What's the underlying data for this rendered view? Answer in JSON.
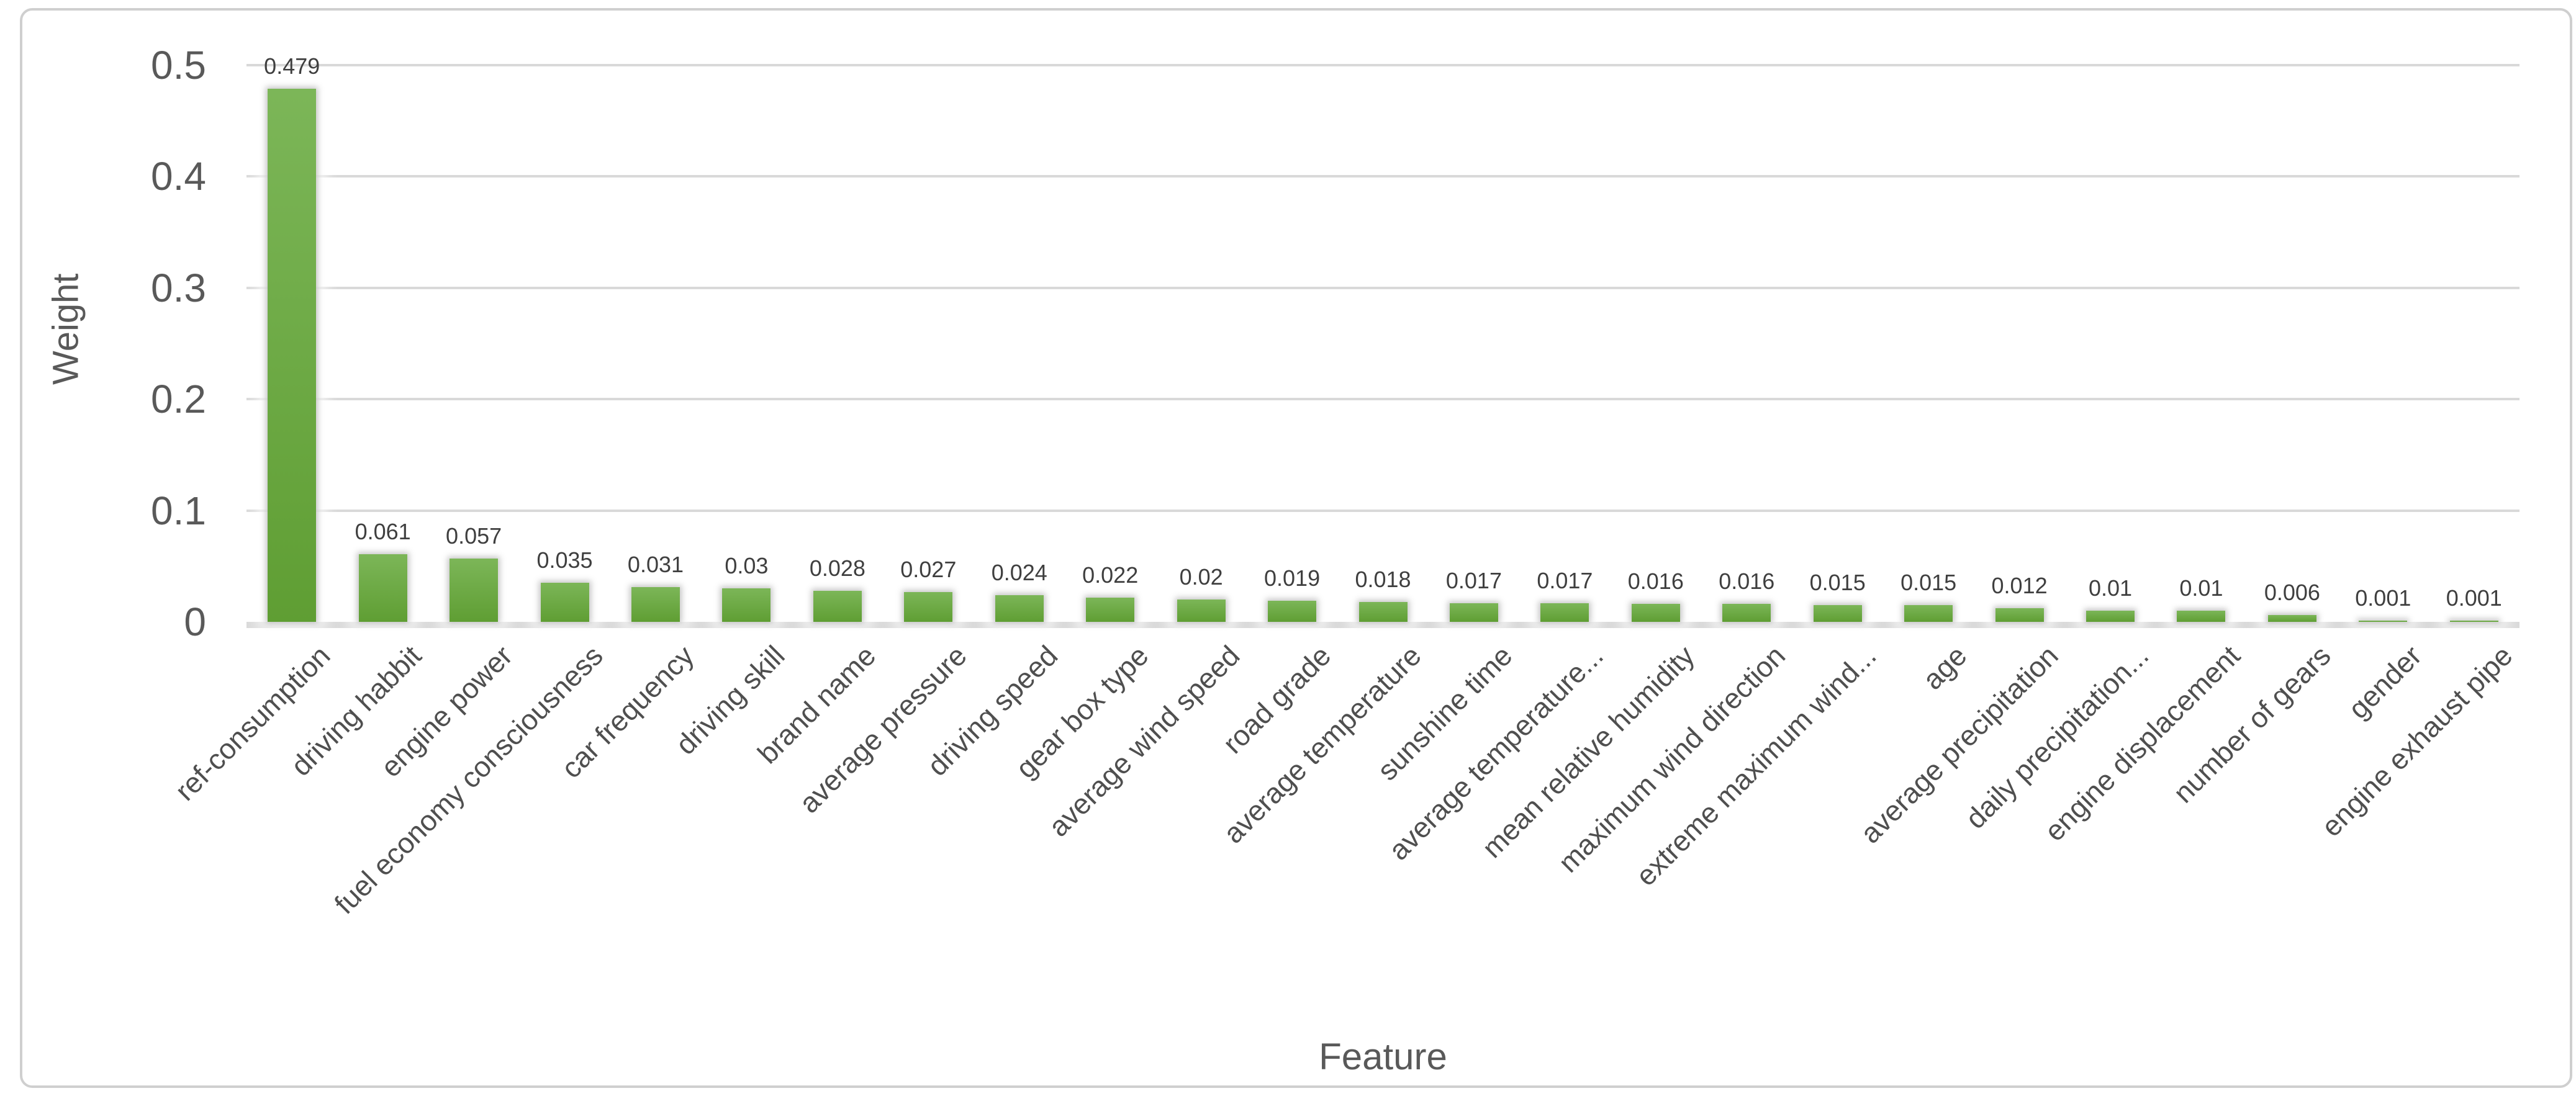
{
  "chart_data": {
    "type": "bar",
    "title": "",
    "xlabel": "Feature",
    "ylabel": "Weight",
    "ylim": [
      0,
      0.5
    ],
    "yticks": [
      0,
      0.1,
      0.2,
      0.3,
      0.4,
      0.5
    ],
    "ytick_labels": [
      "0",
      "0.1",
      "0.2",
      "0.3",
      "0.4",
      "0.5"
    ],
    "grid": "horizontal",
    "legend": "none",
    "bar_color": "green",
    "categories": [
      "ref-consumption",
      "driving habbit",
      "engine power",
      "fuel economy consciousness",
      "car frequency",
      "driving skill",
      "brand name",
      "average pressure",
      "driving speed",
      "gear box type",
      "average wind speed",
      "road grade",
      "average temperature",
      "sunshine time",
      "average temperature...",
      "mean relative humidity",
      "maximum wind direction",
      "extreme maximum wind...",
      "age",
      "average precipitation",
      "daily precipitation...",
      "engine displacement",
      "number of gears",
      "gender",
      "engine exhaust pipe"
    ],
    "values": [
      0.479,
      0.061,
      0.057,
      0.035,
      0.031,
      0.03,
      0.028,
      0.027,
      0.024,
      0.022,
      0.02,
      0.019,
      0.018,
      0.017,
      0.017,
      0.016,
      0.016,
      0.015,
      0.015,
      0.012,
      0.01,
      0.01,
      0.006,
      0.001,
      0.001
    ],
    "value_labels": [
      "0.479",
      "0.061",
      "0.057",
      "0.035",
      "0.031",
      "0.03",
      "0.028",
      "0.027",
      "0.024",
      "0.022",
      "0.02",
      "0.019",
      "0.018",
      "0.017",
      "0.017",
      "0.016",
      "0.016",
      "0.015",
      "0.015",
      "0.012",
      "0.01",
      "0.01",
      "0.006",
      "0.001",
      "0.001"
    ]
  },
  "colors": {
    "bar_top": "#7cb658",
    "bar_bottom": "#5f9e33",
    "gridline": "#d9d9d9",
    "axis_line": "#d9d9d9",
    "tick_text": "#595959",
    "value_text": "#3f3f3f",
    "category_text": "#4f4f4f",
    "border": "#cfcfcf",
    "background": "#ffffff"
  }
}
